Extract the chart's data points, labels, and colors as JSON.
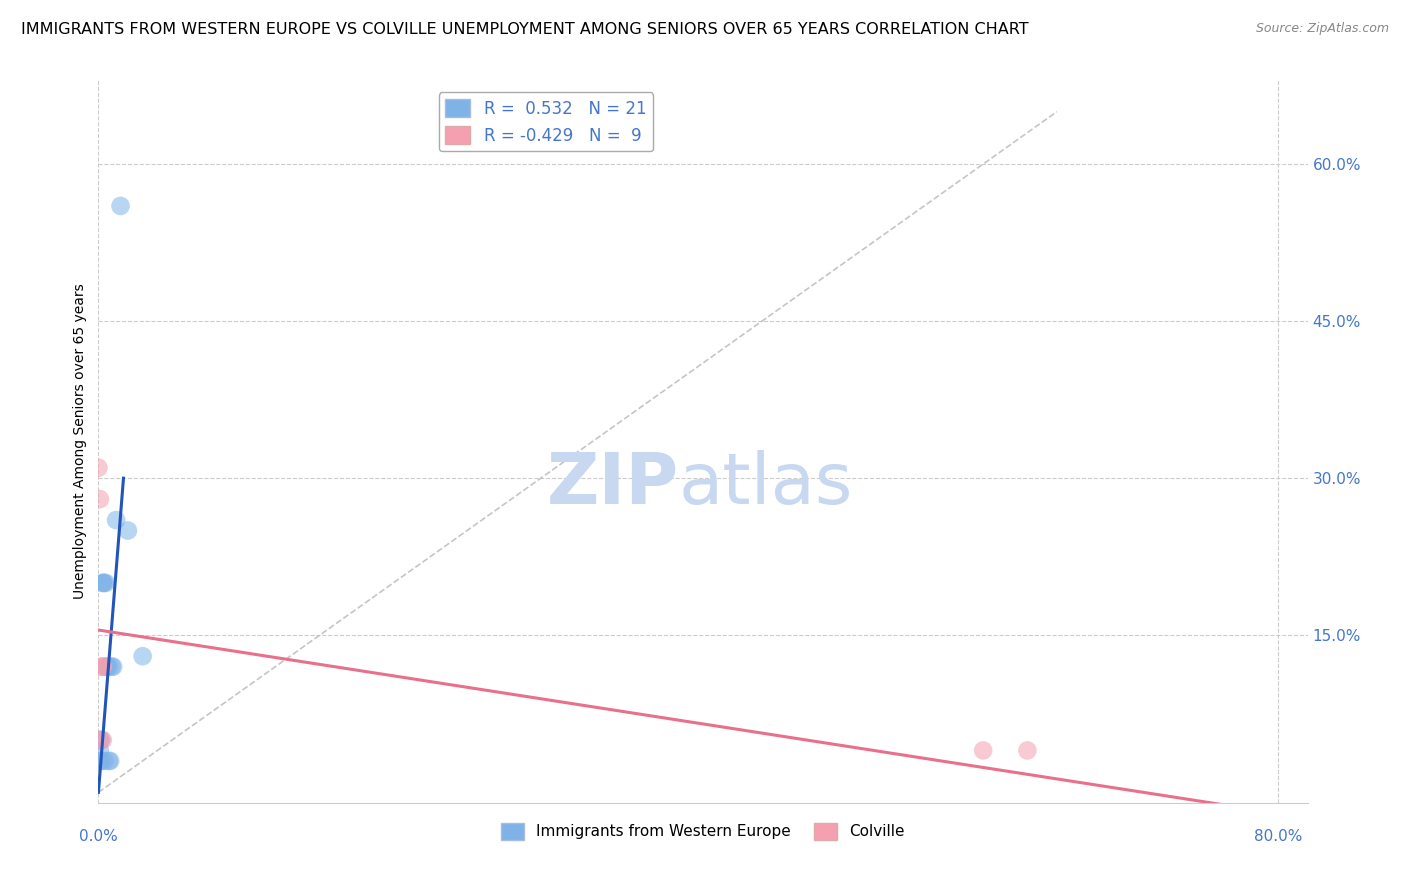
{
  "title": "IMMIGRANTS FROM WESTERN EUROPE VS COLVILLE UNEMPLOYMENT AMONG SENIORS OVER 65 YEARS CORRELATION CHART",
  "source": "Source: ZipAtlas.com",
  "ylabel": "Unemployment Among Seniors over 65 years",
  "legend_blue_label": "Immigrants from Western Europe",
  "legend_pink_label": "Colville",
  "R_blue": 0.532,
  "N_blue": 21,
  "R_pink": -0.429,
  "N_pink": 9,
  "blue_scatter_x": [
    0.001,
    0.001,
    0.001,
    0.002,
    0.002,
    0.003,
    0.003,
    0.004,
    0.004,
    0.005,
    0.005,
    0.006,
    0.007,
    0.007,
    0.008,
    0.009,
    0.01,
    0.012,
    0.015,
    0.02,
    0.03
  ],
  "blue_scatter_y": [
    0.03,
    0.04,
    0.05,
    0.03,
    0.05,
    0.2,
    0.2,
    0.2,
    0.03,
    0.2,
    0.12,
    0.12,
    0.12,
    0.03,
    0.03,
    0.12,
    0.12,
    0.26,
    0.56,
    0.25,
    0.13
  ],
  "pink_scatter_x": [
    0.0,
    0.001,
    0.001,
    0.002,
    0.003,
    0.003,
    0.003,
    0.6,
    0.63
  ],
  "pink_scatter_y": [
    0.31,
    0.05,
    0.28,
    0.12,
    0.12,
    0.12,
    0.05,
    0.04,
    0.04
  ],
  "blue_line_x": [
    0.0,
    0.017
  ],
  "blue_line_y": [
    0.0,
    0.3
  ],
  "pink_line_x": [
    0.0,
    0.8
  ],
  "pink_line_y": [
    0.155,
    -0.02
  ],
  "diag_line_x": [
    0.0,
    0.65
  ],
  "diag_line_y": [
    0.0,
    0.65
  ],
  "watermark_zip": "ZIP",
  "watermark_atlas": "atlas",
  "xlim": [
    0.0,
    0.82
  ],
  "ylim": [
    -0.01,
    0.68
  ],
  "xtick_left_label": "0.0%",
  "xtick_right_label": "80.0%",
  "ytick_positions": [
    0.15,
    0.3,
    0.45,
    0.6
  ],
  "ytick_labels": [
    "15.0%",
    "30.0%",
    "45.0%",
    "60.0%"
  ],
  "grid_color": "#cccccc",
  "blue_scatter_color": "#7fb3e8",
  "pink_scatter_color": "#f4a0b0",
  "blue_line_color": "#2255bb",
  "pink_line_color": "#e8708a",
  "diag_color": "#bbbbbb",
  "tick_label_color": "#4477cc",
  "scatter_alpha": 0.55,
  "scatter_size": 180,
  "title_fontsize": 11.5,
  "source_fontsize": 9,
  "watermark_zip_color": "#c8d8f0",
  "watermark_atlas_color": "#c8d8f0",
  "watermark_fontsize": 52
}
